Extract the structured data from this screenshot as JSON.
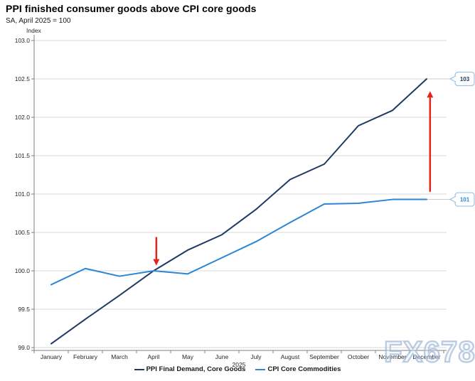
{
  "title": "PPI finished consumer goods above CPI core goods",
  "subtitle": "SA, April 2025 = 100",
  "watermark": "FX678",
  "chart_data": {
    "type": "line",
    "title": "PPI finished consumer goods above CPI core goods",
    "subtitle": "SA, April 2025 = 100",
    "ylabel": "Index",
    "xlabel_year": "2025",
    "ylim": [
      99.0,
      103.0
    ],
    "ytick_step": 0.5,
    "grid": "horizontal",
    "legend_position": "bottom",
    "categories": [
      "January",
      "February",
      "March",
      "April",
      "May",
      "June",
      "July",
      "August",
      "September",
      "October",
      "November",
      "December"
    ],
    "series": [
      {
        "name": "PPI Final Demand, Core Goods",
        "color": "#1f3864",
        "end_label": "103",
        "values": [
          99.05,
          99.37,
          99.68,
          100.0,
          100.27,
          100.47,
          100.8,
          101.19,
          101.39,
          101.89,
          102.09,
          102.5
        ]
      },
      {
        "name": "CPI Core Commodities",
        "color": "#2b86d6",
        "end_label": "101",
        "values": [
          99.82,
          100.03,
          99.93,
          100.0,
          99.96,
          100.17,
          100.38,
          100.63,
          100.87,
          100.88,
          100.93,
          100.93
        ]
      }
    ],
    "annotations": [
      {
        "shape": "arrow",
        "direction": "down",
        "color": "#e5231b",
        "x_month_index": 3.08,
        "from_value": 100.44,
        "to_value": 100.07
      },
      {
        "shape": "arrow",
        "direction": "up",
        "color": "#e5231b",
        "x_month_index": 11.1,
        "from_value": 101.03,
        "to_value": 102.34
      }
    ],
    "callout_border_color": "#9dc3e6",
    "connector_color": "#c9ced6"
  }
}
